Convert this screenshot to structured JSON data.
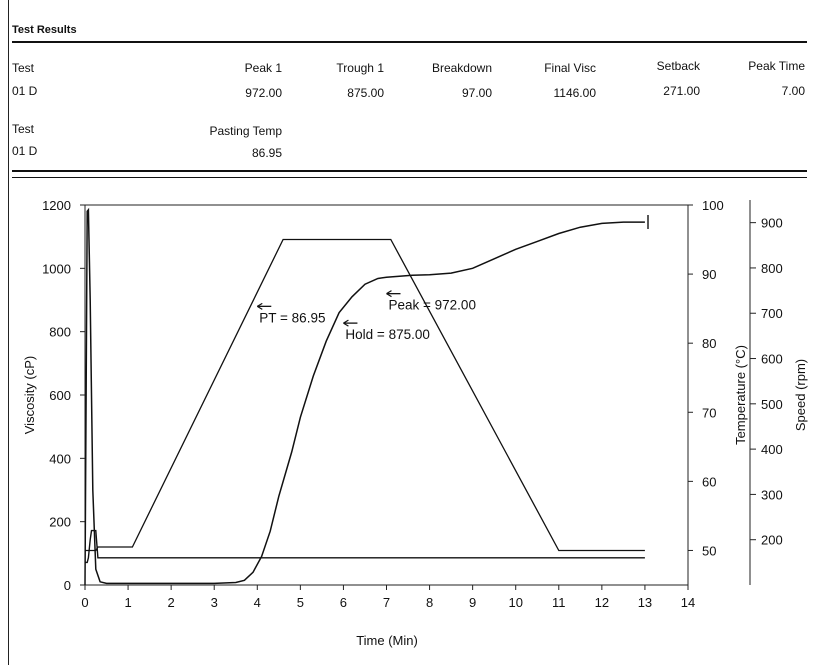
{
  "header": {
    "title": "Test Results",
    "row1": {
      "test_label": "Test",
      "test_value": "01  D",
      "columns": [
        {
          "label": "Peak 1",
          "value": "972.00"
        },
        {
          "label": "Trough 1",
          "value": "875.00"
        },
        {
          "label": "Breakdown",
          "value": "97.00"
        },
        {
          "label": "Final Visc",
          "value": "1146.00"
        },
        {
          "label": "Setback",
          "value": "271.00"
        },
        {
          "label": "Peak Time",
          "value": "7.00"
        }
      ]
    },
    "row2": {
      "test_label": "Test",
      "test_value": "01  D",
      "columns": [
        {
          "label": "Pasting Temp",
          "value": "86.95"
        }
      ]
    }
  },
  "chart_data": {
    "type": "line",
    "xlabel": "Time (Min)",
    "ylabel": "Viscosity (cP)",
    "y2label": "Temperature (°C)",
    "y3label": "Speed (rpm)",
    "xlim": [
      0,
      14
    ],
    "ylim": [
      0,
      1200
    ],
    "y2lim": [
      45,
      100
    ],
    "y3lim": [
      100,
      950
    ],
    "x_ticks": [
      0,
      1,
      2,
      3,
      4,
      5,
      6,
      7,
      8,
      9,
      10,
      11,
      12,
      13,
      14
    ],
    "y_ticks": [
      0,
      200,
      400,
      600,
      800,
      1000,
      1200
    ],
    "y2_ticks": [
      50,
      60,
      70,
      80,
      90,
      100
    ],
    "y3_ticks": [
      200,
      300,
      400,
      500,
      600,
      700,
      800,
      900
    ],
    "grid": false,
    "series": [
      {
        "axis": "viscosity",
        "x": [
          0,
          0.05,
          0.08,
          0.12,
          0.18,
          0.25,
          0.35,
          0.5,
          1,
          2,
          3,
          3.5,
          3.7,
          3.9,
          4.1,
          4.3,
          4.5,
          4.8,
          5.0,
          5.3,
          5.6,
          5.9,
          6.2,
          6.5,
          6.8,
          7.0,
          7.3,
          7.6,
          8.0,
          8.5,
          9.0,
          9.5,
          10.0,
          10.5,
          11.0,
          11.5,
          12.0,
          12.5,
          13.0
        ],
        "y": [
          0,
          1180,
          1185,
          900,
          300,
          50,
          10,
          5,
          5,
          5,
          5,
          8,
          15,
          40,
          90,
          170,
          280,
          420,
          530,
          660,
          770,
          860,
          910,
          950,
          968,
          972,
          975,
          978,
          980,
          985,
          1000,
          1030,
          1060,
          1085,
          1110,
          1130,
          1142,
          1146,
          1146
        ]
      },
      {
        "axis": "temperature",
        "x": [
          0,
          0.1,
          0.25,
          0.3,
          0.5,
          1.0,
          1.1,
          4.6,
          7.0,
          7.1,
          11.0,
          13.0
        ],
        "y": [
          50,
          50,
          50,
          50.5,
          50.5,
          50.5,
          50.5,
          95,
          95,
          95,
          50,
          50
        ]
      },
      {
        "axis": "speed",
        "x": [
          0,
          0.05,
          0.08,
          0.12,
          0.15,
          0.25,
          0.3,
          13
        ],
        "y": [
          150,
          150,
          160,
          200,
          220,
          220,
          160,
          160
        ]
      }
    ],
    "annotations": [
      {
        "text": "PT = 86.95",
        "x": 4.0,
        "y": 880
      },
      {
        "text": "Peak = 972.00",
        "x": 7.0,
        "y": 920
      },
      {
        "text": "Hold = 875.00",
        "x": 6.0,
        "y": 827
      }
    ]
  }
}
